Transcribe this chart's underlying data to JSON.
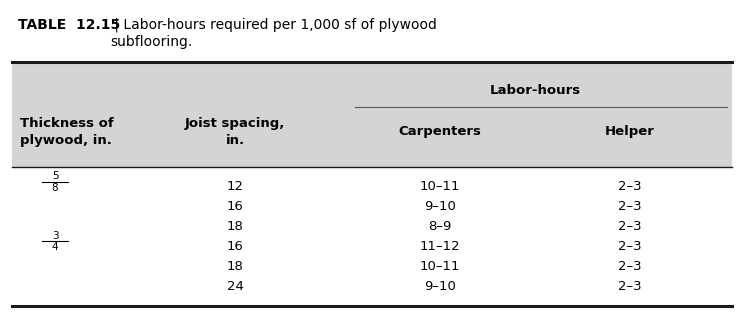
{
  "title_bold": "TABLE  12.15",
  "title_rest": " | Labor-hours required per 1,000 sf of plywood\nsubflooring.",
  "header_bg": "#d4d4d4",
  "rows": [
    [
      "5/8",
      "12",
      "10–11",
      "2–3"
    ],
    [
      "",
      "16",
      "9–10",
      "2–3"
    ],
    [
      "",
      "18",
      "8–9",
      "2–3"
    ],
    [
      "3/4",
      "16",
      "11–12",
      "2–3"
    ],
    [
      "",
      "18",
      "10–11",
      "2–3"
    ],
    [
      "",
      "24",
      "9–10",
      "2–3"
    ]
  ],
  "fraction_rows": {
    "0": "5/8",
    "3": "3/4"
  },
  "figsize": [
    7.44,
    3.24
  ],
  "dpi": 100
}
